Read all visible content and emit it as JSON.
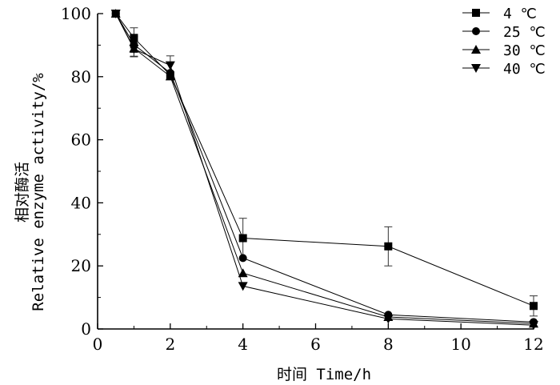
{
  "chart_data": {
    "type": "line",
    "x": [
      0.5,
      1,
      2,
      4,
      8,
      12
    ],
    "xlim": [
      0,
      12
    ],
    "ylim": [
      0,
      100
    ],
    "xticks": [
      "0",
      "2",
      "4",
      "6",
      "8",
      "10",
      "12"
    ],
    "yticks": [
      "0",
      "20",
      "40",
      "60",
      "80",
      "100"
    ],
    "xlabel": "时间 Time/h",
    "ylabel_line1": "相对酶活",
    "ylabel_line2": "Relative enzyme activity/%",
    "legend_position": "top-right",
    "grid": false,
    "series": [
      {
        "name": "4 ℃",
        "marker": "square",
        "values": [
          100,
          92.3,
          80.5,
          28.8,
          26.2,
          7.3
        ],
        "errors": [
          0,
          3.2,
          0,
          6.3,
          6.2,
          3.2
        ]
      },
      {
        "name": "25 ℃",
        "marker": "circle",
        "values": [
          100,
          90.2,
          81.2,
          22.5,
          4.5,
          2.2
        ],
        "errors": [
          0,
          2.5,
          0,
          0,
          0,
          0
        ]
      },
      {
        "name": "30 ℃",
        "marker": "triangle-up",
        "values": [
          100,
          89.0,
          80.1,
          17.7,
          3.8,
          1.7
        ],
        "errors": [
          0,
          2.5,
          0,
          0,
          0,
          0
        ]
      },
      {
        "name": "40 ℃",
        "marker": "triangle-down",
        "values": [
          100,
          88.8,
          83.6,
          13.6,
          3.2,
          1.2
        ],
        "errors": [
          0,
          2.5,
          3.0,
          0,
          0,
          0
        ]
      }
    ]
  }
}
